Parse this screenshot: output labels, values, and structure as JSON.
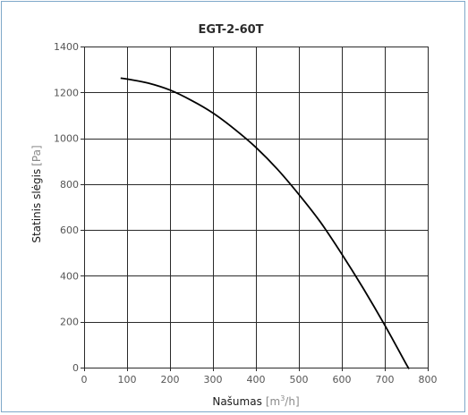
{
  "chart_data": {
    "type": "line",
    "title": "EGT-2-60T",
    "xlabel": {
      "text": "Našumas",
      "unit_prefix": "[m",
      "unit_sup": "3",
      "unit_suffix": "/h]"
    },
    "ylabel": {
      "text": "Statinis slėgis",
      "unit": "[Pa]"
    },
    "xlim": [
      0,
      800
    ],
    "ylim": [
      0,
      1400
    ],
    "xticks": [
      0,
      100,
      200,
      300,
      400,
      500,
      600,
      700,
      800
    ],
    "yticks": [
      0,
      200,
      400,
      600,
      800,
      1000,
      1200,
      1400
    ],
    "grid": true,
    "series": [
      {
        "color": "#000000",
        "x": [
          85,
          100,
          150,
          200,
          250,
          300,
          350,
          400,
          450,
          500,
          550,
          600,
          650,
          700,
          750,
          755
        ],
        "y": [
          1262,
          1258,
          1240,
          1210,
          1165,
          1110,
          1040,
          960,
          865,
          755,
          635,
          495,
          345,
          185,
          15,
          0
        ]
      }
    ]
  }
}
